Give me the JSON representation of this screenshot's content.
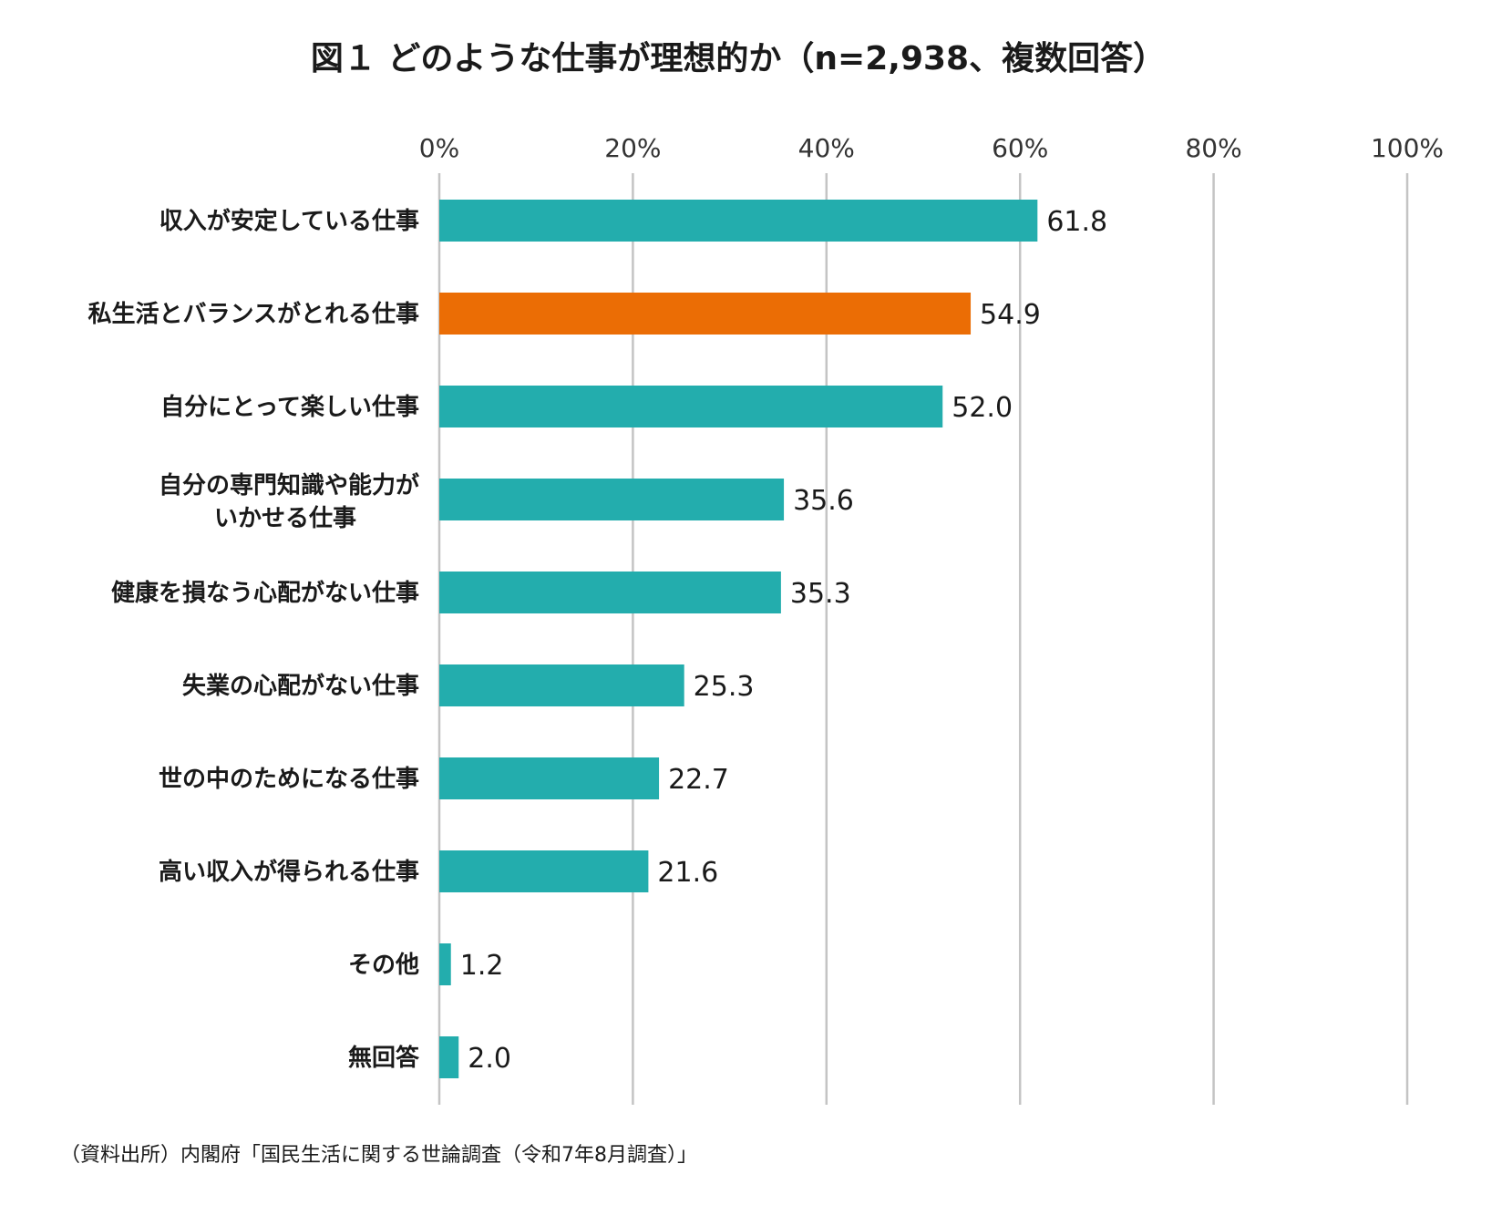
{
  "chart_data": {
    "type": "bar",
    "orientation": "horizontal",
    "title": "図１ どのような仕事が理想的か（n=2,938、複数回答）",
    "source": "（資料出所）内閣府「国民生活に関する世論調査（令和7年8月調査）」",
    "categories": [
      [
        "収入が安定している仕事"
      ],
      [
        "私生活とバランスがとれる仕事"
      ],
      [
        "自分にとって楽しい仕事"
      ],
      [
        "自分の専門知識や能力が",
        "いかせる仕事"
      ],
      [
        "健康を損なう心配がない仕事"
      ],
      [
        "失業の心配がない仕事"
      ],
      [
        "世の中のためになる仕事"
      ],
      [
        "高い収入が得られる仕事"
      ],
      [
        "その他"
      ],
      [
        "無回答"
      ]
    ],
    "values": [
      61.8,
      54.9,
      52.0,
      35.6,
      35.3,
      25.3,
      22.7,
      21.6,
      1.2,
      2.0
    ],
    "value_labels": [
      "61.8",
      "54.9",
      "52.0",
      "35.6",
      "35.3",
      "25.3",
      "22.7",
      "21.6",
      "1.2",
      "2.0"
    ],
    "xlim": [
      0,
      100
    ],
    "xticks": [
      0,
      20,
      40,
      60,
      80,
      100
    ],
    "xtick_labels": [
      "0%",
      "20%",
      "40%",
      "60%",
      "80%",
      "100%"
    ],
    "axis_position": "top",
    "grid": true,
    "bar_color": "#23ADAD",
    "highlight_color": "#EB6D05",
    "highlight_index": 1
  }
}
